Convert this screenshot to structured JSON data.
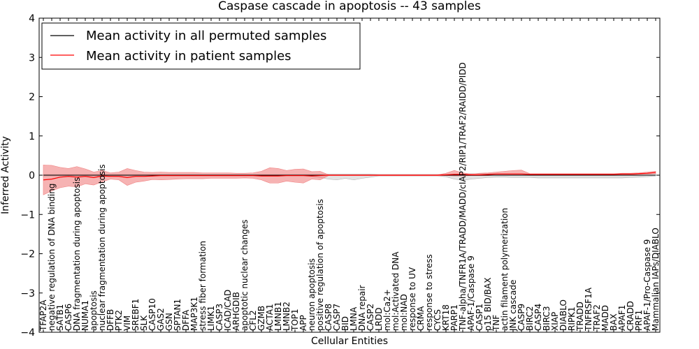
{
  "chart_data": {
    "type": "line",
    "title": "Caspase cascade in apoptosis -- 43 samples",
    "xlabel": "Cellular Entities",
    "ylabel": "Inferred Activity",
    "ylim": [
      -4,
      4
    ],
    "yticks": [
      -4,
      -3,
      -2,
      -1,
      0,
      1,
      2,
      3,
      4
    ],
    "ytick_labels": [
      "−4",
      "−3",
      "−2",
      "−1",
      "0",
      "1",
      "2",
      "3",
      "4"
    ],
    "legend_placement": "top-left",
    "categories": [
      "TFAP2A",
      "negative regulation of DNA binding",
      "SATB1",
      "CASP6",
      "DNA fragmentation during apoptosis",
      "NUMA1",
      "apoptosis",
      "nuclear fragmentation during apoptosis",
      "DFFB",
      "PTK2",
      "VIM",
      "SREBF1",
      "SLK",
      "CASP10",
      "GAS2",
      "GSN",
      "SPTAN1",
      "DFFA",
      "MAP3K1",
      "stress fiber formation",
      "LIMK1",
      "CASP3",
      "ICAD/CAD",
      "ARHGDIB",
      "apoptotic nuclear changes",
      "CFL2",
      "GZMB",
      "ACTA1",
      "LMNB1",
      "LMNB2",
      "TOP1",
      "APP",
      "neuron apoptosis",
      "positive regulation of apoptosis",
      "CASP8",
      "CASP7",
      "BID",
      "LMNA",
      "DNA repair",
      "CASP2",
      "LRDD",
      "mol:Ca2+",
      "mol:Activated DNA",
      "mol:NAD",
      "response to UV",
      "CRMA",
      "response to stress",
      "CYCS",
      "KRT18",
      "PARP1",
      "TNF-alpha/TNFR1A/TRADD/MADD/cIAP2/RIP1/TRAF2/RAIDD/PIDD",
      "APAF-1/Caspase 9",
      "CASP1",
      "p15 BID/BAX",
      "TNF",
      "actin filament polymerization",
      "JNK cascade",
      "CASP9",
      "BIRC2",
      "CASP4",
      "BIRC3",
      "XIAP",
      "DIABLO",
      "RIPK1",
      "TRADD",
      "TNFRSF1A",
      "TRAF2",
      "MADD",
      "BAX",
      "APAF1",
      "CRADD",
      "PRF1",
      "APAF-1/Pro-Caspase 9",
      "Mammalian IAPs/DIABLO"
    ],
    "series": [
      {
        "name": "Mean activity in all permuted samples",
        "color": "#000000",
        "values": [
          0,
          0,
          0,
          0,
          0,
          0,
          0,
          0,
          0,
          0,
          0,
          0,
          0,
          0,
          0,
          0,
          0,
          0,
          0,
          0,
          0,
          0,
          0,
          0,
          0,
          0,
          0,
          0,
          0,
          0,
          0,
          0,
          0,
          0,
          0,
          0,
          0,
          0,
          0,
          0,
          0,
          0,
          0,
          0,
          0,
          0,
          0,
          0,
          0,
          0,
          0,
          0,
          0,
          0,
          0,
          0,
          0,
          0,
          0,
          0,
          0,
          0,
          0,
          0,
          0,
          0,
          0,
          0,
          0,
          0,
          0,
          0,
          0,
          0
        ],
        "band_upper": [
          0.02,
          0.02,
          0.02,
          0.02,
          0.02,
          0.02,
          0.02,
          0.02,
          0.02,
          0.02,
          0.02,
          0.02,
          0.02,
          0.02,
          0.02,
          0.02,
          0.02,
          0.02,
          0.02,
          0.02,
          0.02,
          0.02,
          0.02,
          0.02,
          0.02,
          0.02,
          0.02,
          0.02,
          0.02,
          0.02,
          0.02,
          0.02,
          0.02,
          0.02,
          0.03,
          0.03,
          0.03,
          0.03,
          0.03,
          0.03,
          0.02,
          0.02,
          0.02,
          0.02,
          0.02,
          0.02,
          0.02,
          0.02,
          0.02,
          0.03,
          0.03,
          0.04,
          0.04,
          0.04,
          0.04,
          0.04,
          0.04,
          0.04,
          0.04,
          0.04,
          0.04,
          0.04,
          0.04,
          0.04,
          0.04,
          0.04,
          0.04,
          0.04,
          0.04,
          0.04,
          0.04,
          0.04,
          0.04,
          0.04
        ],
        "band_lower": [
          -0.02,
          -0.02,
          -0.02,
          -0.02,
          -0.02,
          -0.02,
          -0.02,
          -0.02,
          -0.02,
          -0.02,
          -0.02,
          -0.02,
          -0.02,
          -0.02,
          -0.02,
          -0.02,
          -0.02,
          -0.02,
          -0.02,
          -0.02,
          -0.02,
          -0.02,
          -0.02,
          -0.02,
          -0.02,
          -0.02,
          -0.02,
          -0.02,
          -0.02,
          -0.02,
          -0.02,
          -0.02,
          -0.03,
          -0.06,
          -0.1,
          -0.12,
          -0.08,
          -0.12,
          -0.08,
          -0.05,
          -0.02,
          -0.02,
          -0.02,
          -0.02,
          -0.02,
          -0.02,
          -0.02,
          -0.02,
          -0.04,
          -0.1,
          -0.13,
          -0.1,
          -0.08,
          -0.06,
          -0.05,
          -0.05,
          -0.06,
          -0.06,
          -0.06,
          -0.07,
          -0.07,
          -0.07,
          -0.07,
          -0.07,
          -0.07,
          -0.07,
          -0.07,
          -0.07,
          -0.07,
          -0.07,
          -0.06,
          -0.05,
          -0.04,
          -0.02
        ]
      },
      {
        "name": "Mean activity in patient samples",
        "color": "#ff0000",
        "values": [
          -0.12,
          -0.1,
          -0.05,
          -0.03,
          -0.05,
          -0.03,
          -0.06,
          -0.02,
          -0.03,
          -0.03,
          -0.06,
          -0.03,
          -0.03,
          -0.02,
          -0.01,
          -0.01,
          -0.01,
          -0.01,
          -0.01,
          -0.01,
          -0.01,
          -0.01,
          -0.01,
          -0.01,
          -0.01,
          -0.01,
          -0.02,
          -0.02,
          -0.02,
          -0.01,
          -0.01,
          -0.01,
          -0.02,
          -0.01,
          0,
          0,
          0,
          0,
          0,
          0,
          0,
          0,
          0,
          0,
          0,
          0,
          0,
          0,
          0.01,
          0.02,
          0.02,
          0.01,
          0.01,
          0.02,
          0.03,
          0.03,
          0.03,
          0.03,
          0.02,
          0.02,
          0.02,
          0.02,
          0.02,
          0.02,
          0.02,
          0.02,
          0.02,
          0.02,
          0.02,
          0.03,
          0.03,
          0.04,
          0.05,
          0.07
        ],
        "band_upper": [
          0.26,
          0.25,
          0.2,
          0.17,
          0.22,
          0.16,
          0.08,
          0.12,
          0.06,
          0.08,
          0.17,
          0.12,
          0.08,
          0.07,
          0.08,
          0.07,
          0.07,
          0.07,
          0.07,
          0.06,
          0.06,
          0.06,
          0.06,
          0.05,
          0.05,
          0.06,
          0.1,
          0.19,
          0.17,
          0.12,
          0.15,
          0.16,
          0.09,
          0.1,
          0.01,
          0.01,
          0.01,
          0.01,
          0.01,
          0.01,
          0.01,
          0.01,
          0.01,
          0.01,
          0.01,
          0.01,
          0.01,
          0.01,
          0.05,
          0.12,
          0.06,
          0.03,
          0.05,
          0.06,
          0.08,
          0.1,
          0.12,
          0.13,
          0.04,
          0.04,
          0.04,
          0.04,
          0.04,
          0.04,
          0.04,
          0.04,
          0.04,
          0.04,
          0.04,
          0.05,
          0.05,
          0.06,
          0.08,
          0.1
        ],
        "band_lower": [
          -0.5,
          -0.4,
          -0.32,
          -0.28,
          -0.3,
          -0.22,
          -0.25,
          -0.17,
          -0.1,
          -0.12,
          -0.26,
          -0.18,
          -0.15,
          -0.11,
          -0.12,
          -0.11,
          -0.1,
          -0.09,
          -0.09,
          -0.09,
          -0.08,
          -0.08,
          -0.08,
          -0.08,
          -0.07,
          -0.08,
          -0.12,
          -0.2,
          -0.2,
          -0.15,
          -0.18,
          -0.2,
          -0.1,
          -0.12,
          -0.01,
          -0.01,
          -0.01,
          -0.01,
          -0.01,
          -0.01,
          -0.01,
          -0.01,
          -0.01,
          -0.01,
          -0.01,
          -0.01,
          -0.01,
          -0.01,
          -0.01,
          -0.02,
          -0.02,
          -0.01,
          -0.01,
          -0.01,
          0,
          0,
          0,
          0,
          0,
          0,
          0,
          0,
          0,
          0,
          0,
          0,
          0,
          0,
          0,
          0.01,
          0.01,
          0.02,
          0.03,
          0.04
        ]
      }
    ]
  }
}
